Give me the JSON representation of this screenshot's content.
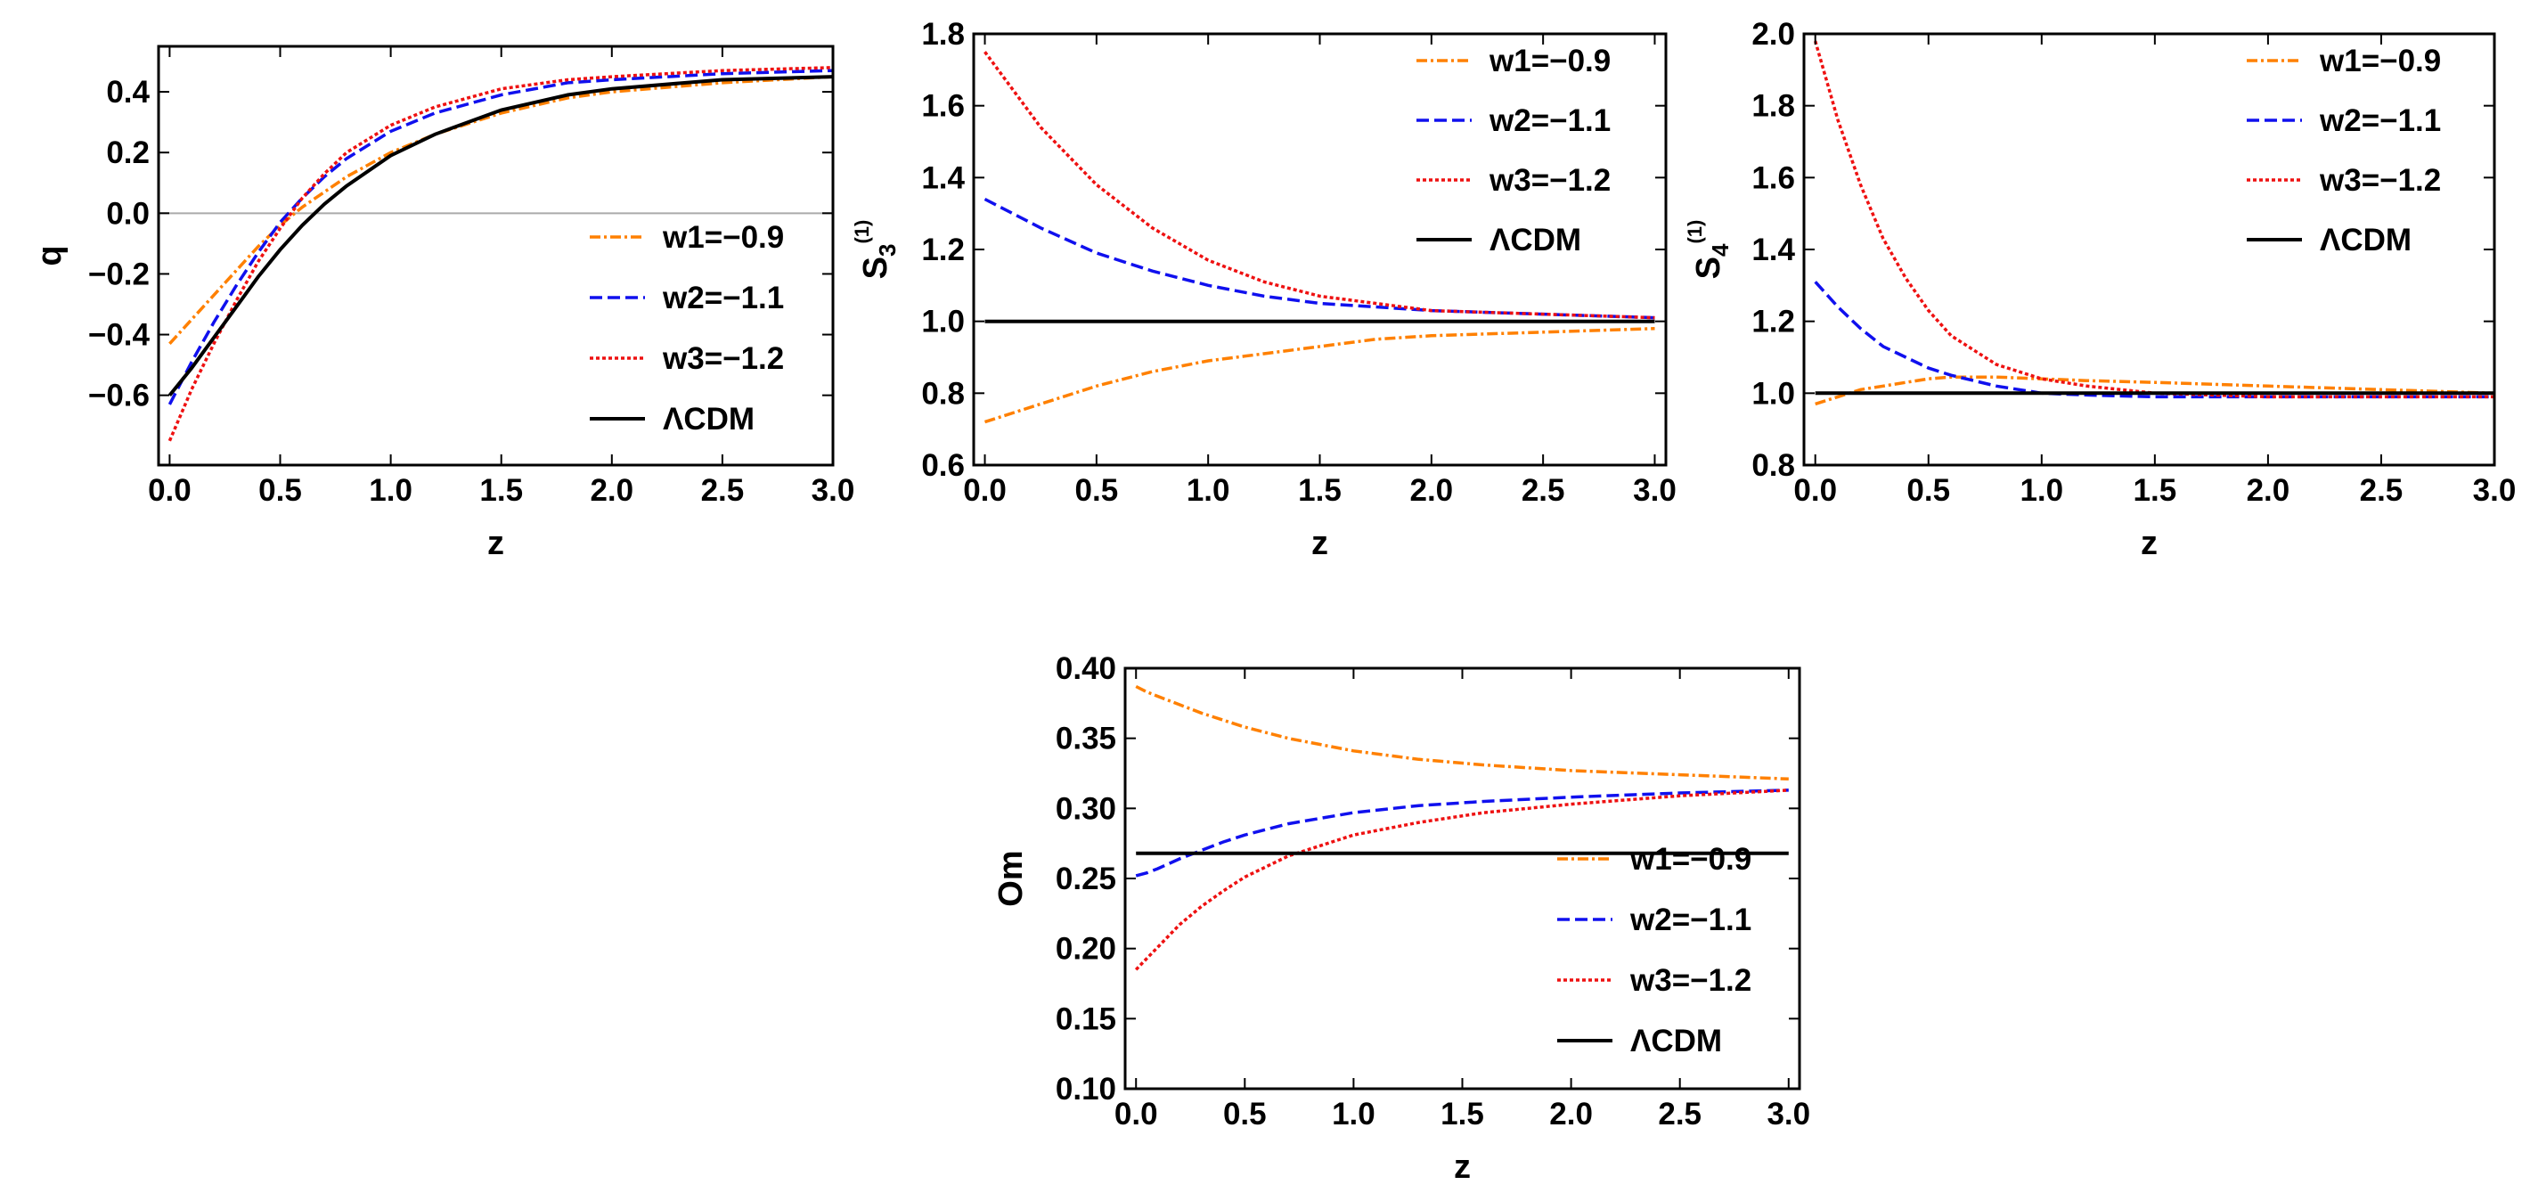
{
  "colors": {
    "w1": "#ff8000",
    "w2": "#1010ee",
    "w3": "#ee1111",
    "lcdm": "#000000",
    "zero_line": "#aaaaaa"
  },
  "chart_data": [
    {
      "id": "q",
      "type": "line",
      "title": "",
      "xlabel": "z",
      "ylabel": "q",
      "ylabel_sub": "",
      "ylabel_sup": "",
      "xlim": [
        -0.05,
        3.0
      ],
      "ylim": [
        -0.83,
        0.55
      ],
      "xticks": [
        0.0,
        0.5,
        1.0,
        1.5,
        2.0,
        2.5,
        3.0
      ],
      "xtick_labels": [
        "0.0",
        "0.5",
        "1.0",
        "1.5",
        "2.0",
        "2.5",
        "3.0"
      ],
      "yticks": [
        -0.6,
        -0.4,
        -0.2,
        0.0,
        0.2,
        0.4
      ],
      "ytick_labels": [
        "-0.6",
        "-0.4",
        "-0.2",
        "0.0",
        "0.2",
        "0.4"
      ],
      "reference_line": 0.0,
      "legend": "center-right",
      "x": [
        0.0,
        0.1,
        0.2,
        0.3,
        0.4,
        0.5,
        0.6,
        0.7,
        0.8,
        1.0,
        1.2,
        1.5,
        1.8,
        2.0,
        2.5,
        3.0
      ],
      "series": [
        {
          "key": "w1",
          "name": "w1=−0.9",
          "values": [
            -0.43,
            -0.35,
            -0.27,
            -0.19,
            -0.11,
            -0.04,
            0.02,
            0.07,
            0.12,
            0.2,
            0.26,
            0.33,
            0.38,
            0.4,
            0.43,
            0.45
          ]
        },
        {
          "key": "w2",
          "name": "w2=−1.1",
          "values": [
            -0.63,
            -0.49,
            -0.36,
            -0.24,
            -0.13,
            -0.03,
            0.05,
            0.12,
            0.18,
            0.27,
            0.33,
            0.39,
            0.43,
            0.44,
            0.46,
            0.47
          ]
        },
        {
          "key": "w3",
          "name": "w3=−1.2",
          "values": [
            -0.75,
            -0.58,
            -0.43,
            -0.29,
            -0.16,
            -0.05,
            0.05,
            0.13,
            0.2,
            0.29,
            0.35,
            0.41,
            0.44,
            0.45,
            0.47,
            0.48
          ]
        },
        {
          "key": "lcdm",
          "name": "ΛCDM",
          "values": [
            -0.6,
            -0.51,
            -0.41,
            -0.31,
            -0.21,
            -0.12,
            -0.04,
            0.03,
            0.09,
            0.19,
            0.26,
            0.34,
            0.39,
            0.41,
            0.44,
            0.45
          ]
        }
      ]
    },
    {
      "id": "s3",
      "type": "line",
      "title": "",
      "xlabel": "z",
      "ylabel": "S",
      "ylabel_sub": "3",
      "ylabel_sup": "(1)",
      "xlim": [
        -0.05,
        3.05
      ],
      "ylim": [
        0.6,
        1.8
      ],
      "xticks": [
        0.0,
        0.5,
        1.0,
        1.5,
        2.0,
        2.5,
        3.0
      ],
      "xtick_labels": [
        "0.0",
        "0.5",
        "1.0",
        "1.5",
        "2.0",
        "2.5",
        "3.0"
      ],
      "yticks": [
        0.6,
        0.8,
        1.0,
        1.2,
        1.4,
        1.6,
        1.8
      ],
      "ytick_labels": [
        "0.6",
        "0.8",
        "1.0",
        "1.2",
        "1.4",
        "1.6",
        "1.8"
      ],
      "legend": "top-right",
      "x": [
        0.0,
        0.25,
        0.5,
        0.75,
        1.0,
        1.25,
        1.5,
        1.75,
        2.0,
        2.5,
        3.0
      ],
      "series": [
        {
          "key": "w1",
          "name": "w1=−0.9",
          "values": [
            0.72,
            0.77,
            0.82,
            0.86,
            0.89,
            0.91,
            0.93,
            0.95,
            0.96,
            0.97,
            0.98
          ]
        },
        {
          "key": "w2",
          "name": "w2=−1.1",
          "values": [
            1.34,
            1.26,
            1.19,
            1.14,
            1.1,
            1.07,
            1.05,
            1.04,
            1.03,
            1.02,
            1.01
          ]
        },
        {
          "key": "w3",
          "name": "w3=−1.2",
          "values": [
            1.75,
            1.54,
            1.38,
            1.26,
            1.17,
            1.11,
            1.07,
            1.05,
            1.03,
            1.02,
            1.01
          ]
        },
        {
          "key": "lcdm",
          "name": "ΛCDM",
          "values": [
            1.0,
            1.0,
            1.0,
            1.0,
            1.0,
            1.0,
            1.0,
            1.0,
            1.0,
            1.0,
            1.0
          ]
        }
      ]
    },
    {
      "id": "s4",
      "type": "line",
      "title": "",
      "xlabel": "z",
      "ylabel": "S",
      "ylabel_sub": "4",
      "ylabel_sup": "(1)",
      "xlim": [
        -0.05,
        3.0
      ],
      "ylim": [
        0.8,
        2.0
      ],
      "xticks": [
        0.0,
        0.5,
        1.0,
        1.5,
        2.0,
        2.5,
        3.0
      ],
      "xtick_labels": [
        "0.0",
        "0.5",
        "1.0",
        "1.5",
        "2.0",
        "2.5",
        "3.0"
      ],
      "yticks": [
        0.8,
        1.0,
        1.2,
        1.4,
        1.6,
        1.8,
        2.0
      ],
      "ytick_labels": [
        "0.8",
        "1.0",
        "1.2",
        "1.4",
        "1.6",
        "1.8",
        "2.0"
      ],
      "legend": "top-right",
      "x": [
        0.0,
        0.1,
        0.2,
        0.3,
        0.4,
        0.5,
        0.6,
        0.8,
        1.0,
        1.2,
        1.5,
        2.0,
        2.5,
        3.0
      ],
      "series": [
        {
          "key": "w1",
          "name": "w1=−0.9",
          "values": [
            0.97,
            0.99,
            1.01,
            1.02,
            1.03,
            1.04,
            1.045,
            1.045,
            1.04,
            1.035,
            1.03,
            1.02,
            1.01,
            1.0
          ]
        },
        {
          "key": "w2",
          "name": "w2=−1.1",
          "values": [
            1.31,
            1.24,
            1.18,
            1.13,
            1.1,
            1.07,
            1.05,
            1.02,
            1.0,
            0.995,
            0.99,
            0.99,
            0.99,
            0.99
          ]
        },
        {
          "key": "w3",
          "name": "w3=−1.2",
          "values": [
            1.98,
            1.76,
            1.58,
            1.43,
            1.32,
            1.23,
            1.16,
            1.08,
            1.04,
            1.02,
            1.0,
            0.99,
            0.99,
            0.99
          ]
        },
        {
          "key": "lcdm",
          "name": "ΛCDM",
          "values": [
            1.0,
            1.0,
            1.0,
            1.0,
            1.0,
            1.0,
            1.0,
            1.0,
            1.0,
            1.0,
            1.0,
            1.0,
            1.0,
            1.0
          ]
        }
      ]
    },
    {
      "id": "om",
      "type": "line",
      "title": "",
      "xlabel": "z",
      "ylabel": "Om",
      "ylabel_sub": "",
      "ylabel_sup": "",
      "xlim": [
        -0.05,
        3.05
      ],
      "ylim": [
        0.1,
        0.4
      ],
      "xticks": [
        0.0,
        0.5,
        1.0,
        1.5,
        2.0,
        2.5,
        3.0
      ],
      "xtick_labels": [
        "0.0",
        "0.5",
        "1.0",
        "1.5",
        "2.0",
        "2.5",
        "3.0"
      ],
      "yticks": [
        0.1,
        0.15,
        0.2,
        0.25,
        0.3,
        0.35,
        0.4
      ],
      "ytick_labels": [
        "0.10",
        "0.15",
        "0.20",
        "0.25",
        "0.30",
        "0.35",
        "0.40"
      ],
      "legend": "bottom-right",
      "x": [
        0.0,
        0.05,
        0.1,
        0.2,
        0.3,
        0.4,
        0.5,
        0.7,
        1.0,
        1.3,
        1.6,
        2.0,
        2.5,
        3.0
      ],
      "series": [
        {
          "key": "w1",
          "name": "w1=−0.9",
          "values": [
            0.387,
            0.383,
            0.38,
            0.374,
            0.368,
            0.363,
            0.358,
            0.35,
            0.341,
            0.335,
            0.331,
            0.327,
            0.324,
            0.321
          ]
        },
        {
          "key": "w2",
          "name": "w2=−1.1",
          "values": [
            0.252,
            0.254,
            0.257,
            0.264,
            0.27,
            0.276,
            0.281,
            0.289,
            0.297,
            0.302,
            0.305,
            0.308,
            0.311,
            0.313
          ]
        },
        {
          "key": "w3",
          "name": "w3=−1.2",
          "values": [
            0.185,
            0.193,
            0.201,
            0.217,
            0.23,
            0.241,
            0.251,
            0.266,
            0.281,
            0.29,
            0.297,
            0.303,
            0.309,
            0.313
          ]
        },
        {
          "key": "lcdm",
          "name": "ΛCDM",
          "values": [
            0.268,
            0.268,
            0.268,
            0.268,
            0.268,
            0.268,
            0.268,
            0.268,
            0.268,
            0.268,
            0.268,
            0.268,
            0.268,
            0.268
          ]
        }
      ]
    }
  ]
}
